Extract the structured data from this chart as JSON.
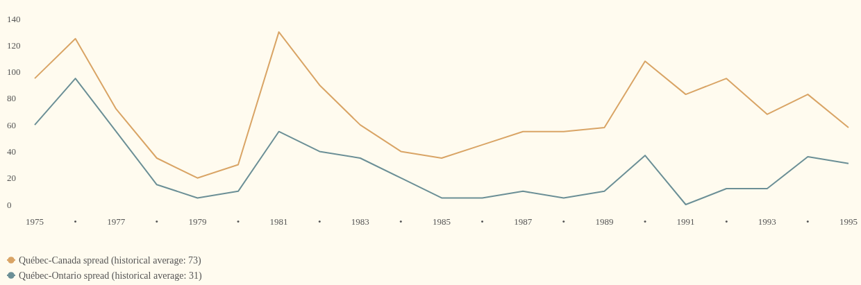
{
  "chart_data": {
    "type": "line",
    "categories": [
      "1975",
      "•",
      "1977",
      "•",
      "1979",
      "•",
      "1981",
      "•",
      "1983",
      "•",
      "1985",
      "•",
      "1987",
      "•",
      "1989",
      "•",
      "1991",
      "•",
      "1993",
      "•",
      "1995"
    ],
    "series": [
      {
        "name": "Québec-Canada spread (historical average: 73)",
        "color": "#d9a465",
        "values": [
          95,
          125,
          72,
          35,
          20,
          30,
          130,
          90,
          60,
          40,
          35,
          45,
          55,
          55,
          58,
          108,
          83,
          95,
          68,
          83,
          58
        ]
      },
      {
        "name": "Québec-Ontario spread (historical average: 31)",
        "color": "#6b8f96",
        "values": [
          60,
          95,
          55,
          15,
          5,
          10,
          55,
          40,
          35,
          20,
          5,
          5,
          10,
          5,
          10,
          37,
          0,
          12,
          12,
          36,
          31
        ]
      }
    ],
    "ylim": [
      0,
      140
    ],
    "yticks": [
      0,
      20,
      40,
      60,
      80,
      100,
      120,
      140
    ],
    "grid": false,
    "legend": "bottom left",
    "marker": "none",
    "line_style": "solid"
  }
}
